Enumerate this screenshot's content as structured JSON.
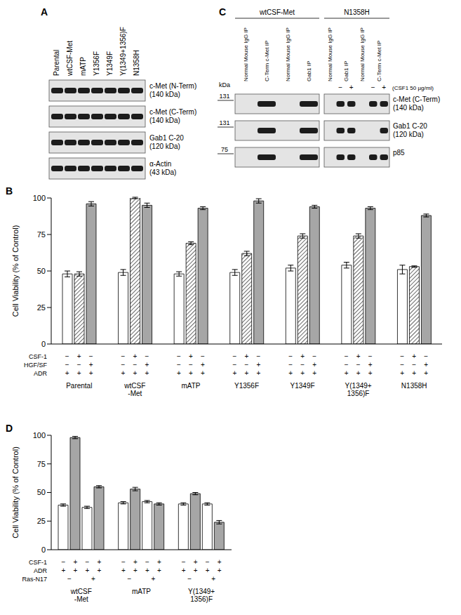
{
  "chart_data": [
    {
      "type": "bar",
      "title": "B",
      "ylabel": "Cell Viability (% of Control)",
      "categories": [
        "Parental",
        "wtCSF\n-Met",
        "mATP",
        "Y1356F",
        "Y1349F",
        "Y(1349+\n1356)F",
        "N1358H"
      ],
      "series": [
        {
          "color": "#ffffff",
          "values": [
            48,
            49,
            48,
            49,
            52,
            54,
            51
          ],
          "errors": [
            2,
            2,
            1.5,
            2,
            2,
            2,
            3
          ]
        },
        {
          "color": "#ffffff",
          "line_style": "hatched",
          "values": [
            48,
            100,
            69,
            62,
            74,
            74,
            53
          ],
          "errors": [
            1.5,
            0.5,
            1,
            1.5,
            1.5,
            1.5,
            0.5
          ]
        },
        {
          "color": "#a6a6a6",
          "values": [
            96,
            95,
            93,
            98,
            94,
            93,
            88
          ],
          "errors": [
            1.5,
            1.5,
            1,
            1.5,
            1,
            1,
            1
          ]
        }
      ],
      "ylim": [
        0,
        100
      ],
      "yticks": [
        0,
        25,
        50,
        75,
        100
      ],
      "conditions": [
        {
          "name": "CSF-1",
          "values": [
            [
              "−",
              "+",
              "−"
            ],
            [
              "−",
              "+",
              "−"
            ],
            [
              "−",
              "+",
              "−"
            ],
            [
              "−",
              "+",
              "−"
            ],
            [
              "−",
              "+",
              "−"
            ],
            [
              "−",
              "+",
              "−"
            ],
            [
              "−",
              "+",
              "−"
            ]
          ]
        },
        {
          "name": "HGF/SF",
          "values": [
            [
              "−",
              "−",
              "+"
            ],
            [
              "−",
              "−",
              "+"
            ],
            [
              "−",
              "−",
              "+"
            ],
            [
              "−",
              "−",
              "+"
            ],
            [
              "−",
              "−",
              "+"
            ],
            [
              "−",
              "−",
              "+"
            ],
            [
              "−",
              "−",
              "+"
            ]
          ]
        },
        {
          "name": "ADR",
          "values": [
            [
              "+",
              "+",
              "+"
            ],
            [
              "+",
              "+",
              "+"
            ],
            [
              "+",
              "+",
              "+"
            ],
            [
              "+",
              "+",
              "+"
            ],
            [
              "+",
              "+",
              "+"
            ],
            [
              "+",
              "+",
              "+"
            ],
            [
              "+",
              "+",
              "+"
            ]
          ]
        }
      ]
    },
    {
      "type": "bar",
      "title": "D",
      "ylabel": "Cell Viability (% of Control)",
      "categories": [
        "wtCSF\n-Met",
        "mATP",
        "Y(1349+\n1356)F"
      ],
      "series": [
        {
          "color": "#ffffff",
          "values": [
            39,
            41,
            40
          ],
          "errors": [
            1,
            1,
            1
          ]
        },
        {
          "color": "#a6a6a6",
          "values": [
            98,
            53,
            49
          ],
          "errors": [
            1,
            1.5,
            1
          ]
        },
        {
          "color": "#ffffff",
          "values": [
            37,
            42,
            40
          ],
          "errors": [
            1,
            1,
            1
          ]
        },
        {
          "color": "#a6a6a6",
          "values": [
            55,
            40,
            24
          ],
          "errors": [
            1,
            1,
            1.5
          ]
        }
      ],
      "ylim": [
        0,
        100
      ],
      "yticks": [
        0,
        25,
        50,
        75,
        100
      ],
      "conditions": [
        {
          "name": "CSF-1",
          "values": [
            [
              "−",
              "+",
              "−",
              "+"
            ],
            [
              "−",
              "+",
              "−",
              "+"
            ],
            [
              "−",
              "+",
              "−",
              "+"
            ]
          ]
        },
        {
          "name": "ADR",
          "values": [
            [
              "+",
              "+",
              "+",
              "+"
            ],
            [
              "+",
              "+",
              "+",
              "+"
            ],
            [
              "+",
              "+",
              "+",
              "+"
            ]
          ]
        },
        {
          "name": "Ras-N17",
          "values": [
            [
              "−",
              "+"
            ],
            [
              "−",
              "+"
            ],
            [
              "−",
              "+"
            ]
          ]
        }
      ]
    }
  ],
  "blot_A": {
    "title": "A",
    "lanes": [
      "Parental",
      "wtCSF-Met",
      "mATP",
      "Y1356F",
      "Y1349F",
      "Y(1349+1356)F",
      "N1358H"
    ],
    "rows": [
      {
        "label": [
          "c-Met (N-Term)",
          "(140 kDa)"
        ]
      },
      {
        "label": [
          "c-Met (C-Term)",
          "(140 kDa)"
        ]
      },
      {
        "label": [
          "Gab1 C-20",
          "(120 kDa)"
        ]
      },
      {
        "label": [
          "α-Actin",
          "(43 kDa)"
        ]
      }
    ]
  },
  "blot_C": {
    "title": "C",
    "kda_label": "kDa",
    "treatment": "(CSF1 50 µg/ml)",
    "panels": [
      {
        "name": "wtCSF-Met",
        "lanes": [
          {
            "label": "Normal Mouse IgG IP"
          },
          {
            "label": "C-Term c-Met IP"
          },
          {
            "label": "Normal Mouse IgG IP"
          },
          {
            "label": "Gab1 IP"
          }
        ]
      },
      {
        "name": "N1358H",
        "lanes": [
          {
            "label": "Normal Mouse IgG IP"
          },
          {
            "label": "Gab1 IP",
            "signs": [
              "−",
              "+"
            ]
          },
          {
            "label": "Normal Mouse IgG IP"
          },
          {
            "label": "C-Term c-Met IP",
            "signs": [
              "−",
              "+"
            ]
          }
        ]
      }
    ],
    "rows": [
      {
        "label": [
          "c-Met (C-Term)",
          "(140 kDa)"
        ],
        "kda_mark": "131",
        "bands": [
          [
            [
              false
            ],
            [
              true
            ],
            [
              false
            ],
            [
              true
            ]
          ],
          [
            [
              false
            ],
            [
              true,
              true
            ],
            [
              false
            ],
            [
              true,
              true
            ]
          ]
        ]
      },
      {
        "label": [
          "Gab1 C-20",
          "(120 kDa)"
        ],
        "kda_mark": "131",
        "bands": [
          [
            [
              false
            ],
            [
              true
            ],
            [
              false
            ],
            [
              true
            ]
          ],
          [
            [
              false
            ],
            [
              true,
              true
            ],
            [
              false
            ],
            [
              false,
              true
            ]
          ]
        ]
      },
      {
        "label": [
          "p85"
        ],
        "kda_mark": "75",
        "bands": [
          [
            [
              false
            ],
            [
              true
            ],
            [
              false
            ],
            [
              true
            ]
          ],
          [
            [
              false
            ],
            [
              true,
              true
            ],
            [
              false
            ],
            [
              true,
              true
            ]
          ]
        ]
      }
    ]
  }
}
